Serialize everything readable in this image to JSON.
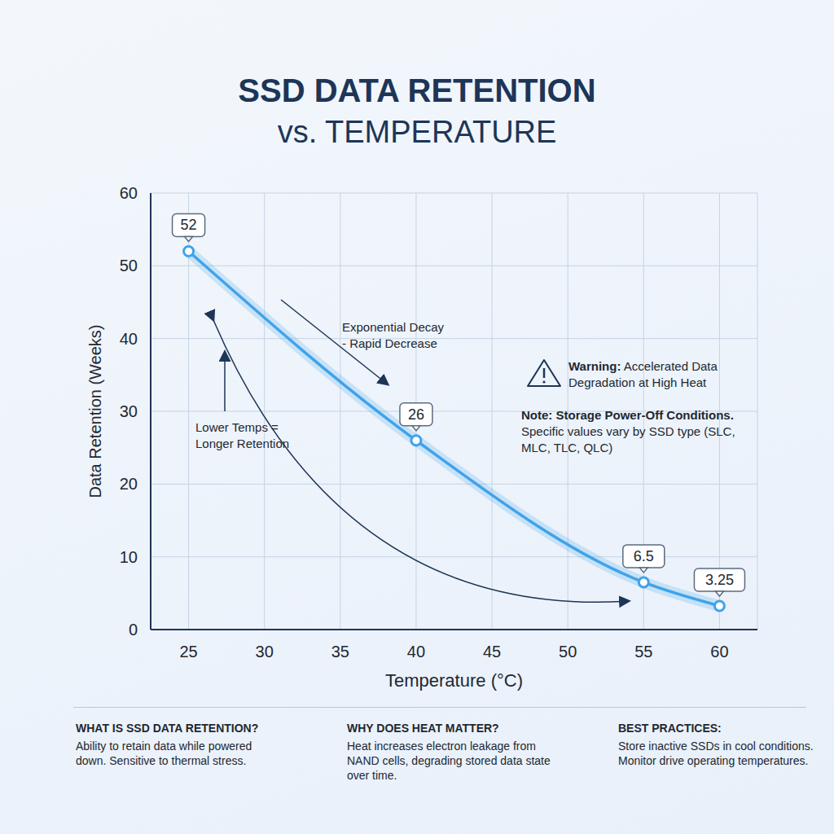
{
  "chart_data": {
    "type": "line",
    "title": "SSD DATA RETENTION",
    "subtitle": "vs. TEMPERATURE",
    "x_label": "Temperature (°C)",
    "y_label": "Data Retention (Weeks)",
    "x": [
      25,
      40,
      55,
      60
    ],
    "values": [
      52,
      26,
      6.5,
      3.25
    ],
    "color": "#3fa3ea",
    "xlim": [
      22.5,
      62.5
    ],
    "xticks": [
      25,
      30,
      35,
      40,
      45,
      50,
      55,
      60
    ],
    "ylim": [
      0,
      60
    ],
    "yticks": [
      0,
      10,
      20,
      30,
      40,
      50,
      60
    ],
    "grid": true,
    "data_labels": true,
    "marker": "circle",
    "line_style": "solid",
    "annotations": [
      {
        "lines": [
          "Exponential Decay",
          "- Rapid Decrease"
        ]
      },
      {
        "lines": [
          "Lower Temps =",
          "Longer Retention"
        ]
      },
      {
        "label": "Warning:",
        "text": "Accelerated Data Degradation at High Heat"
      },
      {
        "label": "Note: Storage Power-Off Conditions.",
        "text": "Specific values vary by SSD type (SLC, MLC, TLC, QLC)"
      }
    ]
  },
  "panels": [
    {
      "heading": "WHAT IS SSD DATA RETENTION?",
      "text": "Ability to retain data while powered down. Sensitive to thermal stress."
    },
    {
      "heading": "WHY DOES HEAT MATTER?",
      "text": "Heat increases electron leakage from NAND cells, degrading stored data state over time."
    },
    {
      "heading": "BEST PRACTICES:",
      "text": "Store inactive SSDs in cool conditions. Monitor drive operating temperatures."
    }
  ]
}
